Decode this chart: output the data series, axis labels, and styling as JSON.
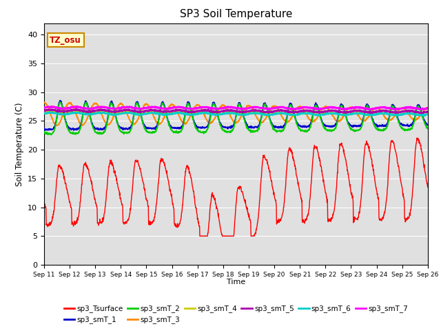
{
  "title": "SP3 Soil Temperature",
  "xlabel": "Time",
  "ylabel": "Soil Temperature (C)",
  "ylim": [
    0,
    42
  ],
  "yticks": [
    0,
    5,
    10,
    15,
    20,
    25,
    30,
    35,
    40
  ],
  "tz_label": "TZ_osu",
  "background_color": "#e0e0e0",
  "series_colors": {
    "sp3_Tsurface": "#ff0000",
    "sp3_smT_1": "#0000cc",
    "sp3_smT_2": "#00cc00",
    "sp3_smT_3": "#ff8800",
    "sp3_smT_4": "#cccc00",
    "sp3_smT_5": "#aa00aa",
    "sp3_smT_6": "#00cccc",
    "sp3_smT_7": "#ff00ff"
  },
  "legend_order": [
    "sp3_Tsurface",
    "sp3_smT_1",
    "sp3_smT_2",
    "sp3_smT_3",
    "sp3_smT_4",
    "sp3_smT_5",
    "sp3_smT_6",
    "sp3_smT_7"
  ]
}
